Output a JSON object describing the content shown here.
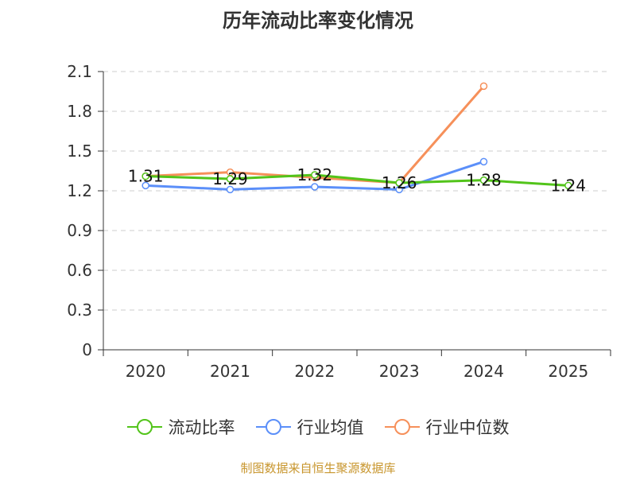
{
  "chart_data": {
    "type": "line",
    "title": "历年流动比率变化情况",
    "categories": [
      "2020",
      "2021",
      "2022",
      "2023",
      "2024",
      "2025"
    ],
    "ylim": [
      0,
      2.1
    ],
    "yticks": [
      "0",
      "0.3",
      "0.6",
      "0.9",
      "1.2",
      "1.5",
      "1.8",
      "2.1"
    ],
    "grid": true,
    "legend_position": "bottom",
    "series": [
      {
        "name": "流动比率",
        "color": "#52c41a",
        "values": [
          1.31,
          1.29,
          1.32,
          1.26,
          1.28,
          1.24
        ],
        "labels": [
          "1.31",
          "1.29",
          "1.32",
          "1.26",
          "1.28",
          "1.24"
        ]
      },
      {
        "name": "行业均值",
        "color": "#5b8ff9",
        "values": [
          1.24,
          1.21,
          1.23,
          1.21,
          1.42,
          null
        ]
      },
      {
        "name": "行业中位数",
        "color": "#f6905a",
        "values": [
          1.31,
          1.34,
          1.3,
          1.26,
          1.99,
          null
        ]
      }
    ]
  },
  "source": "制图数据来自恒生聚源数据库"
}
